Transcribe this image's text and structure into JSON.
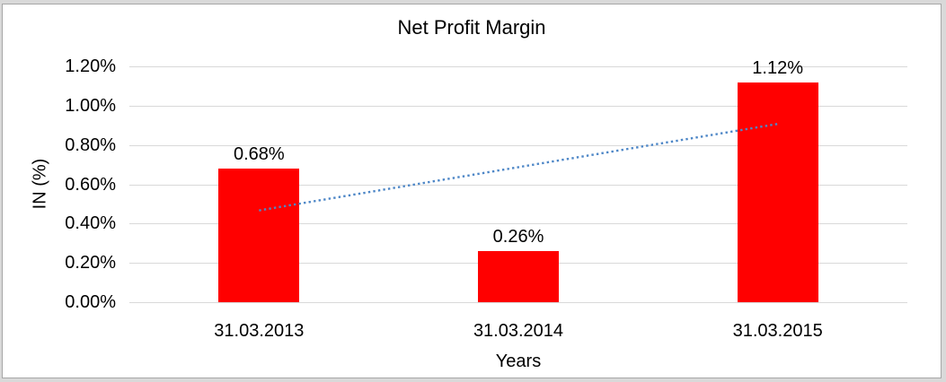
{
  "page": {
    "outer_background": "#d9d9d9",
    "chart_background": "#ffffff",
    "frame_border_color": "#a6a6a6"
  },
  "chart_data": {
    "type": "bar",
    "title": "Net Profit Margin",
    "xlabel": "Years",
    "ylabel": "IN (%)",
    "categories": [
      "31.03.2013",
      "31.03.2014",
      "31.03.2015"
    ],
    "values": [
      0.68,
      0.26,
      1.12
    ],
    "data_labels": [
      "0.68%",
      "0.26%",
      "1.12%"
    ],
    "ylim": [
      0,
      1.2
    ],
    "yticks": [
      {
        "value": 0.0,
        "label": "0.00%"
      },
      {
        "value": 0.2,
        "label": "0.20%"
      },
      {
        "value": 0.4,
        "label": "0.40%"
      },
      {
        "value": 0.6,
        "label": "0.60%"
      },
      {
        "value": 0.8,
        "label": "0.80%"
      },
      {
        "value": 1.0,
        "label": "1.00%"
      },
      {
        "value": 1.2,
        "label": "1.20%"
      }
    ],
    "grid": true,
    "legend": "none",
    "bar_color": "#ff0000",
    "gridline_color": "#d9d9d9",
    "text_color": "#000000",
    "trendline": {
      "type": "linear",
      "style": "dotted",
      "color": "#4e87c7",
      "start_value": 0.467,
      "end_value": 0.907
    }
  }
}
